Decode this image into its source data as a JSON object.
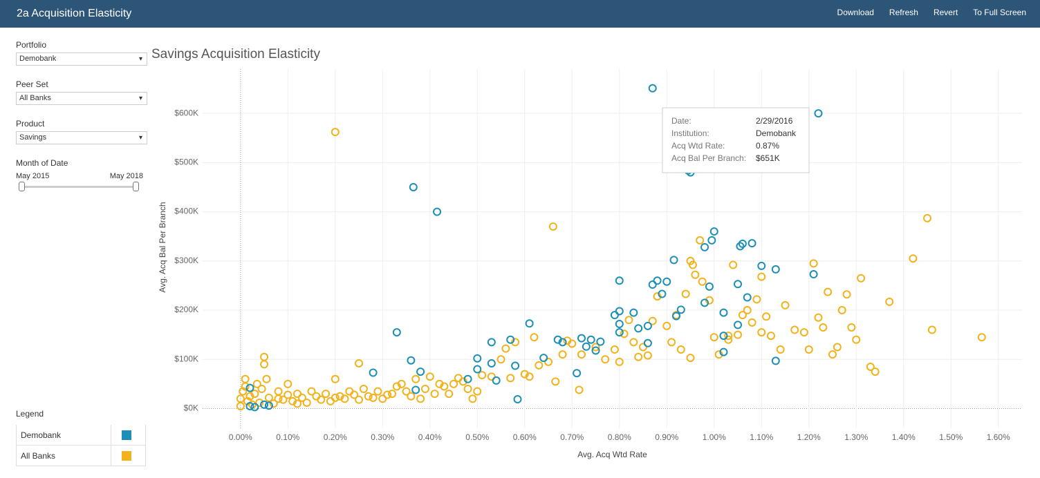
{
  "header": {
    "title": "2a Acquisition Elasticity",
    "buttons": [
      "Download",
      "Refresh",
      "Revert",
      "To Full Screen"
    ]
  },
  "filters": [
    {
      "label": "Portfolio",
      "value": "Demobank"
    },
    {
      "label": "Peer Set",
      "value": "All Banks"
    },
    {
      "label": "Product",
      "value": "Savings"
    }
  ],
  "date_filter": {
    "label": "Month of Date",
    "start": "May 2015",
    "end": "May 2018"
  },
  "legend_title": "Legend",
  "tooltip": {
    "rows": [
      [
        "Date:",
        "2/29/2016"
      ],
      [
        "Institution:",
        "Demobank"
      ],
      [
        "Acq Wtd Rate:",
        "0.87%"
      ],
      [
        "Acq Bal Per Branch:",
        "$651K"
      ]
    ]
  },
  "chart_data": {
    "type": "scatter",
    "title": "Savings Acquisition Elasticity",
    "x_label": "Avg. Acq Wtd Rate",
    "y_label": "Avg. Acq Bal Per Branch",
    "xlim": [
      -0.08,
      1.65
    ],
    "ylim": [
      -40000,
      690000
    ],
    "xticks": [
      {
        "value": 0,
        "label": "0.00%"
      },
      {
        "value": 0.1,
        "label": "0.10%"
      },
      {
        "value": 0.2,
        "label": "0.20%"
      },
      {
        "value": 0.3,
        "label": "0.30%"
      },
      {
        "value": 0.4,
        "label": "0.40%"
      },
      {
        "value": 0.5,
        "label": "0.50%"
      },
      {
        "value": 0.6,
        "label": "0.60%"
      },
      {
        "value": 0.7,
        "label": "0.70%"
      },
      {
        "value": 0.8,
        "label": "0.80%"
      },
      {
        "value": 0.9,
        "label": "0.90%"
      },
      {
        "value": 1.0,
        "label": "1.00%"
      },
      {
        "value": 1.1,
        "label": "1.10%"
      },
      {
        "value": 1.2,
        "label": "1.20%"
      },
      {
        "value": 1.3,
        "label": "1.30%"
      },
      {
        "value": 1.4,
        "label": "1.40%"
      },
      {
        "value": 1.5,
        "label": "1.50%"
      },
      {
        "value": 1.6,
        "label": "1.60%"
      }
    ],
    "yticks": [
      {
        "value": 0,
        "label": "$0K"
      },
      {
        "value": 100000,
        "label": "$100K"
      },
      {
        "value": 200000,
        "label": "$200K"
      },
      {
        "value": 300000,
        "label": "$300K"
      },
      {
        "value": 400000,
        "label": "$400K"
      },
      {
        "value": 500000,
        "label": "$500K"
      },
      {
        "value": 600000,
        "label": "$600K"
      }
    ],
    "grid": true,
    "series": [
      {
        "name": "Demobank",
        "color": "#1b8fb5",
        "x": [
          0.02,
          0.03,
          0.05,
          0.06,
          0.02,
          0.28,
          0.33,
          0.36,
          0.37,
          0.38,
          0.365,
          0.415,
          0.48,
          0.5,
          0.5,
          0.53,
          0.53,
          0.54,
          0.57,
          0.58,
          0.585,
          0.61,
          0.64,
          0.67,
          0.68,
          0.71,
          0.72,
          0.73,
          0.74,
          0.75,
          0.76,
          0.8,
          0.8,
          0.79,
          0.8,
          0.8,
          0.83,
          0.84,
          0.86,
          0.86,
          0.87,
          0.88,
          0.89,
          0.9,
          0.915,
          0.92,
          0.93,
          0.945,
          0.87,
          0.98,
          0.99,
          0.98,
          0.995,
          1.0,
          1.02,
          1.02,
          1.02,
          1.05,
          1.055,
          1.06,
          1.08,
          1.07,
          1.05,
          1.1,
          1.13,
          1.13,
          1.21,
          1.22,
          0.95
        ],
        "values": [
          5000,
          3000,
          8000,
          6000,
          42000,
          73000,
          155000,
          98000,
          38000,
          75000,
          450000,
          400000,
          60000,
          102000,
          80000,
          92000,
          135000,
          57000,
          140000,
          87000,
          19000,
          173000,
          103000,
          140000,
          135000,
          72000,
          143000,
          126000,
          140000,
          118000,
          136000,
          260000,
          198000,
          190000,
          172000,
          155000,
          195000,
          163000,
          168000,
          133000,
          252000,
          260000,
          233000,
          258000,
          302000,
          188000,
          201000,
          484000,
          651000,
          328000,
          248000,
          215000,
          342000,
          360000,
          195000,
          148000,
          115000,
          253000,
          330000,
          335000,
          336000,
          226000,
          170000,
          290000,
          283000,
          97000,
          273000,
          600000,
          480000
        ]
      },
      {
        "name": "All Banks",
        "color": "#f2b21b",
        "x": [
          0.0,
          0.0,
          0.005,
          0.01,
          0.01,
          0.015,
          0.02,
          0.025,
          0.03,
          0.035,
          0.04,
          0.045,
          0.05,
          0.05,
          0.055,
          0.06,
          0.07,
          0.08,
          0.09,
          0.1,
          0.1,
          0.11,
          0.12,
          0.13,
          0.14,
          0.15,
          0.16,
          0.17,
          0.18,
          0.19,
          0.2,
          0.2,
          0.21,
          0.22,
          0.23,
          0.24,
          0.25,
          0.25,
          0.26,
          0.27,
          0.28,
          0.29,
          0.3,
          0.31,
          0.32,
          0.33,
          0.34,
          0.35,
          0.36,
          0.37,
          0.38,
          0.39,
          0.4,
          0.41,
          0.42,
          0.43,
          0.44,
          0.45,
          0.46,
          0.47,
          0.48,
          0.49,
          0.5,
          0.51,
          0.53,
          0.55,
          0.56,
          0.57,
          0.58,
          0.6,
          0.61,
          0.62,
          0.63,
          0.65,
          0.66,
          0.665,
          0.68,
          0.69,
          0.7,
          0.715,
          0.72,
          0.75,
          0.77,
          0.79,
          0.8,
          0.81,
          0.82,
          0.83,
          0.84,
          0.85,
          0.86,
          0.87,
          0.88,
          0.9,
          0.91,
          0.92,
          0.93,
          0.94,
          0.95,
          0.955,
          0.96,
          0.95,
          0.97,
          0.975,
          0.99,
          1.0,
          1.01,
          1.03,
          1.04,
          1.05,
          1.06,
          1.07,
          1.08,
          1.09,
          1.1,
          1.1,
          1.11,
          1.12,
          1.14,
          1.15,
          1.17,
          1.19,
          1.2,
          1.21,
          1.22,
          1.23,
          1.24,
          1.25,
          1.26,
          1.27,
          1.28,
          1.29,
          1.3,
          1.31,
          1.33,
          1.34,
          1.37,
          1.42,
          1.45,
          1.46,
          1.565,
          1.03,
          0.2,
          0.12,
          0.08
        ],
        "values": [
          5000,
          20000,
          35000,
          60000,
          45000,
          15000,
          25000,
          8000,
          30000,
          50000,
          12000,
          40000,
          105000,
          90000,
          60000,
          22000,
          10000,
          35000,
          18000,
          28000,
          50000,
          15000,
          30000,
          22000,
          12000,
          35000,
          25000,
          18000,
          30000,
          15000,
          60000,
          562000,
          25000,
          20000,
          35000,
          28000,
          92000,
          18000,
          40000,
          25000,
          22000,
          35000,
          20000,
          28000,
          30000,
          45000,
          50000,
          35000,
          25000,
          60000,
          20000,
          40000,
          65000,
          30000,
          50000,
          45000,
          30000,
          50000,
          62000,
          55000,
          40000,
          20000,
          35000,
          68000,
          65000,
          100000,
          122000,
          62000,
          135000,
          70000,
          65000,
          145000,
          88000,
          95000,
          370000,
          55000,
          110000,
          138000,
          132000,
          38000,
          110000,
          125000,
          100000,
          120000,
          95000,
          152000,
          180000,
          135000,
          105000,
          125000,
          108000,
          178000,
          228000,
          168000,
          135000,
          190000,
          120000,
          233000,
          300000,
          292000,
          272000,
          103000,
          342000,
          258000,
          220000,
          145000,
          110000,
          148000,
          292000,
          150000,
          190000,
          200000,
          175000,
          222000,
          268000,
          155000,
          187000,
          148000,
          120000,
          210000,
          160000,
          155000,
          120000,
          295000,
          185000,
          165000,
          237000,
          110000,
          125000,
          200000,
          232000,
          165000,
          140000,
          265000,
          85000,
          75000,
          217000,
          305000,
          387000,
          160000,
          145000,
          140000,
          22000,
          10000,
          20000
        ]
      }
    ]
  }
}
